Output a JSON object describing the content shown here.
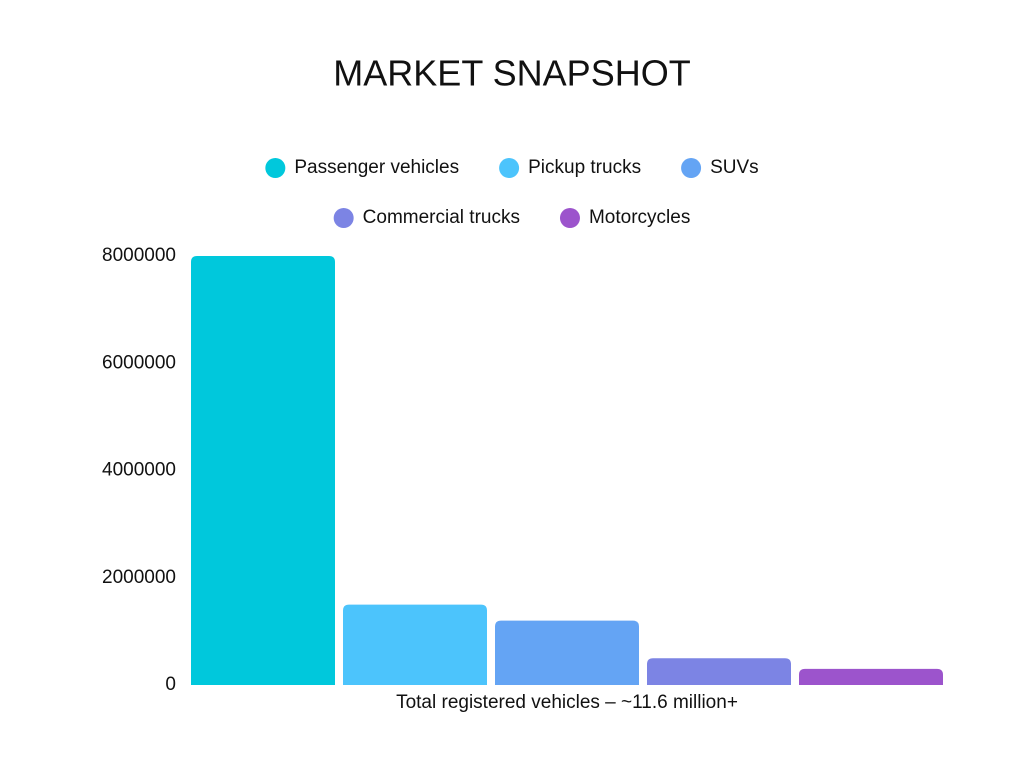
{
  "chart_data": {
    "type": "bar",
    "title": "MARKET SNAPSHOT",
    "categories": [
      "Total registered vehicles – ~11.6 million+"
    ],
    "series": [
      {
        "name": "Passenger vehicles",
        "color": "#00c8dc",
        "values": [
          8000000
        ]
      },
      {
        "name": "Pickup trucks",
        "color": "#4cc4fc",
        "values": [
          1500000
        ]
      },
      {
        "name": "SUVs",
        "color": "#64a4f4",
        "values": [
          1200000
        ]
      },
      {
        "name": "Commercial trucks",
        "color": "#7c84e4",
        "values": [
          500000
        ]
      },
      {
        "name": "Motorcycles",
        "color": "#9c54cc",
        "values": [
          300000
        ]
      }
    ],
    "ylim": [
      0,
      8000000
    ],
    "yticks": [
      0,
      2000000,
      4000000,
      6000000,
      8000000
    ],
    "grid": false,
    "legend": "top"
  }
}
